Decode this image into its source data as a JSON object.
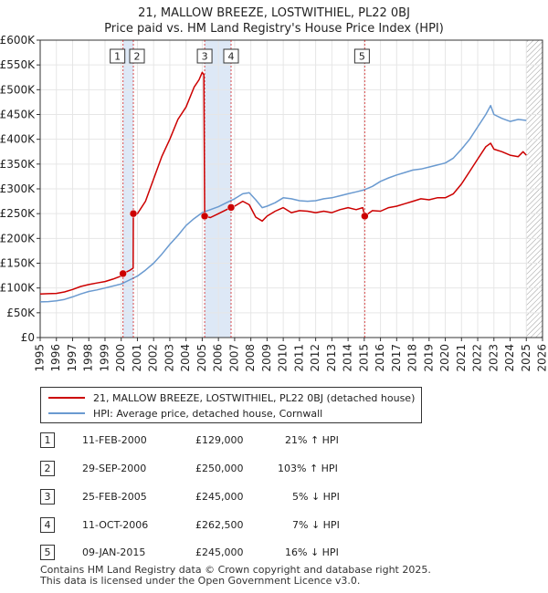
{
  "title_line1": "21, MALLOW BREEZE, LOSTWITHIEL, PL22 0BJ",
  "title_line2": "Price paid vs. HM Land Registry's House Price Index (HPI)",
  "legend": {
    "property_label": "21, MALLOW BREEZE, LOSTWITHIEL, PL22 0BJ (detached house)",
    "hpi_label": "HPI: Average price, detached house, Cornwall"
  },
  "transactions": [
    {
      "num": "1",
      "date": "11-FEB-2000",
      "price": "£129,000",
      "hpi": "21% ↑ HPI"
    },
    {
      "num": "2",
      "date": "29-SEP-2000",
      "price": "£250,000",
      "hpi": "103% ↑ HPI"
    },
    {
      "num": "3",
      "date": "25-FEB-2005",
      "price": "£245,000",
      "hpi": "5% ↓ HPI"
    },
    {
      "num": "4",
      "date": "11-OCT-2006",
      "price": "£262,500",
      "hpi": "7% ↓ HPI"
    },
    {
      "num": "5",
      "date": "09-JAN-2015",
      "price": "£245,000",
      "hpi": "16% ↓ HPI"
    }
  ],
  "footer_line1": "Contains HM Land Registry data © Crown copyright and database right 2025.",
  "footer_line2": "This data is licensed under the Open Government Licence v3.0.",
  "colors": {
    "property": "#cc0000",
    "hpi": "#6a9ad0",
    "shade": "#dde8f6",
    "marker": "#cc0000"
  },
  "chart_data": {
    "type": "line",
    "title": "21, MALLOW BREEZE, LOSTWITHIEL, PL22 0BJ",
    "subtitle": "Price paid vs. HM Land Registry's House Price Index (HPI)",
    "xlabel": "",
    "ylabel": "",
    "xlim": [
      1995,
      2026
    ],
    "ylim": [
      0,
      600000
    ],
    "x_ticks": [
      1995,
      1996,
      1997,
      1998,
      1999,
      2000,
      2001,
      2002,
      2003,
      2004,
      2005,
      2006,
      2007,
      2008,
      2009,
      2010,
      2011,
      2012,
      2013,
      2014,
      2015,
      2016,
      2017,
      2018,
      2019,
      2020,
      2021,
      2022,
      2023,
      2024,
      2025,
      2026
    ],
    "y_ticks": [
      {
        "value": 0,
        "label": "£0"
      },
      {
        "value": 50000,
        "label": "£50K"
      },
      {
        "value": 100000,
        "label": "£100K"
      },
      {
        "value": 150000,
        "label": "£150K"
      },
      {
        "value": 200000,
        "label": "£200K"
      },
      {
        "value": 250000,
        "label": "£250K"
      },
      {
        "value": 300000,
        "label": "£300K"
      },
      {
        "value": 350000,
        "label": "£350K"
      },
      {
        "value": 400000,
        "label": "£400K"
      },
      {
        "value": 450000,
        "label": "£450K"
      },
      {
        "value": 500000,
        "label": "£500K"
      },
      {
        "value": 550000,
        "label": "£550K"
      },
      {
        "value": 600000,
        "label": "£600K"
      }
    ],
    "grid": true,
    "shaded_spans": [
      [
        2000.11,
        2000.75
      ],
      [
        2005.15,
        2006.78
      ]
    ],
    "hatched_from": 2025.0,
    "sales": [
      {
        "label": "1",
        "x": 2000.11,
        "y": 129000
      },
      {
        "label": "2",
        "x": 2000.75,
        "y": 250000
      },
      {
        "label": "3",
        "x": 2005.15,
        "y": 245000
      },
      {
        "label": "4",
        "x": 2006.78,
        "y": 262500
      },
      {
        "label": "5",
        "x": 2015.03,
        "y": 245000
      }
    ],
    "series": [
      {
        "name": "21, MALLOW BREEZE, LOSTWITHIEL, PL22 0BJ (detached house)",
        "x": [
          1995,
          1995.5,
          1996,
          1996.5,
          1997,
          1997.5,
          1998,
          1998.5,
          1999,
          1999.5,
          2000.0,
          2000.11,
          2000.5,
          2000.74,
          2000.75,
          2001,
          2001.5,
          2002,
          2002.5,
          2003,
          2003.5,
          2004,
          2004.5,
          2004.8,
          2005.0,
          2005.1,
          2005.15,
          2005.5,
          2006,
          2006.5,
          2006.78,
          2007,
          2007.5,
          2007.9,
          2008.3,
          2008.7,
          2009,
          2009.5,
          2010,
          2010.5,
          2011,
          2011.5,
          2012,
          2012.5,
          2013,
          2013.5,
          2014,
          2014.5,
          2014.9,
          2015.03,
          2015.5,
          2016,
          2016.5,
          2017,
          2017.5,
          2018,
          2018.5,
          2019,
          2019.5,
          2020,
          2020.5,
          2021,
          2021.5,
          2022,
          2022.5,
          2022.8,
          2023,
          2023.5,
          2024,
          2024.5,
          2024.8,
          2025
        ],
        "values": [
          88000,
          88500,
          89000,
          92000,
          97000,
          103000,
          107000,
          110000,
          113000,
          118000,
          124000,
          129000,
          135000,
          140000,
          250000,
          250000,
          275000,
          320000,
          365000,
          400000,
          440000,
          465000,
          505000,
          520000,
          535000,
          530000,
          245000,
          242000,
          250000,
          258000,
          262500,
          265000,
          275000,
          268000,
          243000,
          235000,
          245000,
          255000,
          262000,
          252000,
          256000,
          255000,
          252000,
          255000,
          252000,
          258000,
          262000,
          258000,
          262000,
          245000,
          256000,
          255000,
          262000,
          265000,
          270000,
          275000,
          280000,
          278000,
          282000,
          282000,
          290000,
          310000,
          335000,
          360000,
          385000,
          392000,
          380000,
          375000,
          368000,
          365000,
          375000,
          368000
        ]
      },
      {
        "name": "HPI: Average price, detached house, Cornwall",
        "x": [
          1995,
          1995.5,
          1996,
          1996.5,
          1997,
          1997.5,
          1998,
          1998.5,
          1999,
          1999.5,
          2000,
          2000.5,
          2001,
          2001.5,
          2002,
          2002.5,
          2003,
          2003.5,
          2004,
          2004.5,
          2005,
          2005.5,
          2006,
          2006.5,
          2007,
          2007.5,
          2007.9,
          2008.3,
          2008.7,
          2009,
          2009.5,
          2010,
          2010.5,
          2011,
          2011.5,
          2012,
          2012.5,
          2013,
          2013.5,
          2014,
          2014.5,
          2015,
          2015.5,
          2016,
          2016.5,
          2017,
          2017.5,
          2018,
          2018.5,
          2019,
          2019.5,
          2020,
          2020.5,
          2021,
          2021.5,
          2022,
          2022.5,
          2022.8,
          2023,
          2023.5,
          2024,
          2024.5,
          2025
        ],
        "values": [
          72000,
          72500,
          74000,
          77000,
          82000,
          88000,
          93000,
          96000,
          100000,
          104000,
          108000,
          116000,
          124000,
          136000,
          150000,
          168000,
          188000,
          206000,
          226000,
          240000,
          252000,
          258000,
          264000,
          272000,
          280000,
          290000,
          292000,
          278000,
          262000,
          265000,
          272000,
          282000,
          280000,
          276000,
          275000,
          276000,
          280000,
          282000,
          286000,
          290000,
          294000,
          298000,
          305000,
          315000,
          322000,
          328000,
          333000,
          338000,
          340000,
          344000,
          348000,
          352000,
          362000,
          380000,
          400000,
          425000,
          450000,
          468000,
          450000,
          442000,
          436000,
          440000,
          438000
        ]
      }
    ]
  }
}
